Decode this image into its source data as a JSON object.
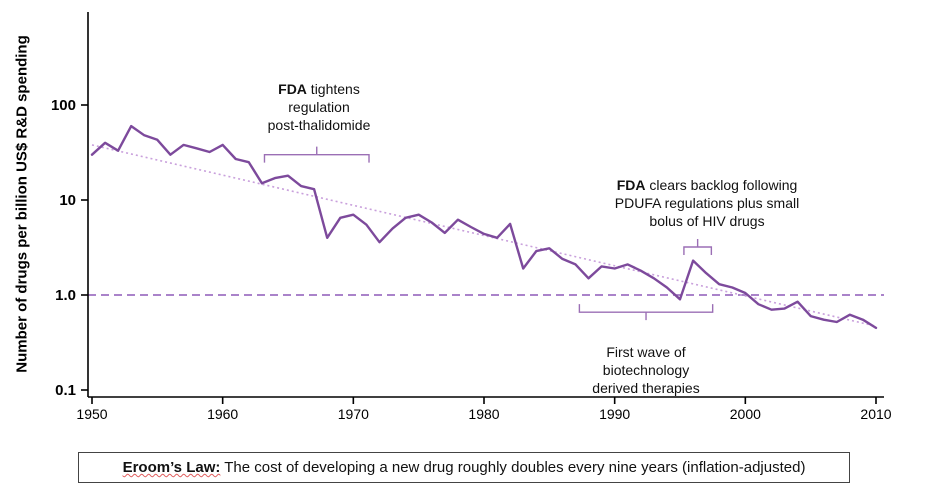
{
  "chart_data": {
    "type": "line",
    "title": "",
    "xlabel": "",
    "ylabel": "Number of drugs per billion US$ R&D spending",
    "y_scale": "log",
    "ylim": [
      0.1,
      100
    ],
    "xlim": [
      1950,
      2010
    ],
    "grid": false,
    "x_ticks": [
      1950,
      1960,
      1970,
      1980,
      1990,
      2000,
      2010
    ],
    "y_ticks": [
      {
        "value": 0.1,
        "label": "0.1"
      },
      {
        "value": 1.0,
        "label": "1.0"
      },
      {
        "value": 10,
        "label": "10"
      },
      {
        "value": 100,
        "label": "100"
      }
    ],
    "series_name": "drugs per billion US$ R&D spending",
    "years": [
      1950,
      1951,
      1952,
      1953,
      1954,
      1955,
      1956,
      1957,
      1958,
      1959,
      1960,
      1961,
      1962,
      1963,
      1964,
      1965,
      1966,
      1967,
      1968,
      1969,
      1970,
      1971,
      1972,
      1973,
      1974,
      1975,
      1976,
      1977,
      1978,
      1979,
      1980,
      1981,
      1982,
      1983,
      1984,
      1985,
      1986,
      1987,
      1988,
      1989,
      1990,
      1991,
      1992,
      1993,
      1994,
      1995,
      1996,
      1997,
      1998,
      1999,
      2000,
      2001,
      2002,
      2003,
      2004,
      2005,
      2006,
      2007,
      2008,
      2009,
      2010
    ],
    "values": [
      30,
      40,
      33,
      60,
      48,
      43,
      30,
      38,
      35,
      32,
      38,
      27,
      25,
      15,
      17,
      18,
      14,
      13,
      4.0,
      6.5,
      7.0,
      5.5,
      3.6,
      5.0,
      6.5,
      7.0,
      5.8,
      4.5,
      6.2,
      5.2,
      4.4,
      4.0,
      5.6,
      1.9,
      2.9,
      3.1,
      2.4,
      2.1,
      1.5,
      2.0,
      1.9,
      2.1,
      1.8,
      1.5,
      1.2,
      0.9,
      2.3,
      1.7,
      1.3,
      1.2,
      1.05,
      0.8,
      0.7,
      0.72,
      0.85,
      0.6,
      0.55,
      0.52,
      0.62,
      0.55,
      0.45
    ],
    "trend_line": {
      "x1": 1950,
      "y1": 38,
      "x2": 2010,
      "y2": 0.47,
      "style": "dotted"
    },
    "reference_line": {
      "value": 1.0,
      "style": "dashed"
    },
    "brackets": [
      {
        "id": "thalidomide",
        "x1": 1963.2,
        "x2": 1971.2,
        "value": 30,
        "open": "down"
      },
      {
        "id": "hiv",
        "x1": 1995.3,
        "x2": 1997.4,
        "value": 3.2,
        "open": "down"
      },
      {
        "id": "biotech",
        "x1": 1987.3,
        "x2": 1997.5,
        "value": 0.66,
        "open": "up"
      }
    ],
    "colors": {
      "line": "#7d4a9c",
      "trend": "#c9a0dc",
      "reference": "#8e5ab8",
      "bracket": "#9b6fb5",
      "axis": "#000000"
    }
  },
  "annotations": {
    "thalidomide": {
      "bold": "FDA",
      "rest": " tightens\nregulation\npost-thalidomide"
    },
    "pdufa": {
      "bold": "FDA",
      "rest": " clears backlog following\nPDUFA regulations plus small\nbolus of HIV drugs"
    },
    "biotech": {
      "text": "First wave of\nbiotechnology\nderived therapies"
    }
  },
  "caption": {
    "bold": "Eroom’s Law:",
    "rest": " The cost of developing a new drug roughly doubles every nine years (inflation-adjusted)"
  }
}
